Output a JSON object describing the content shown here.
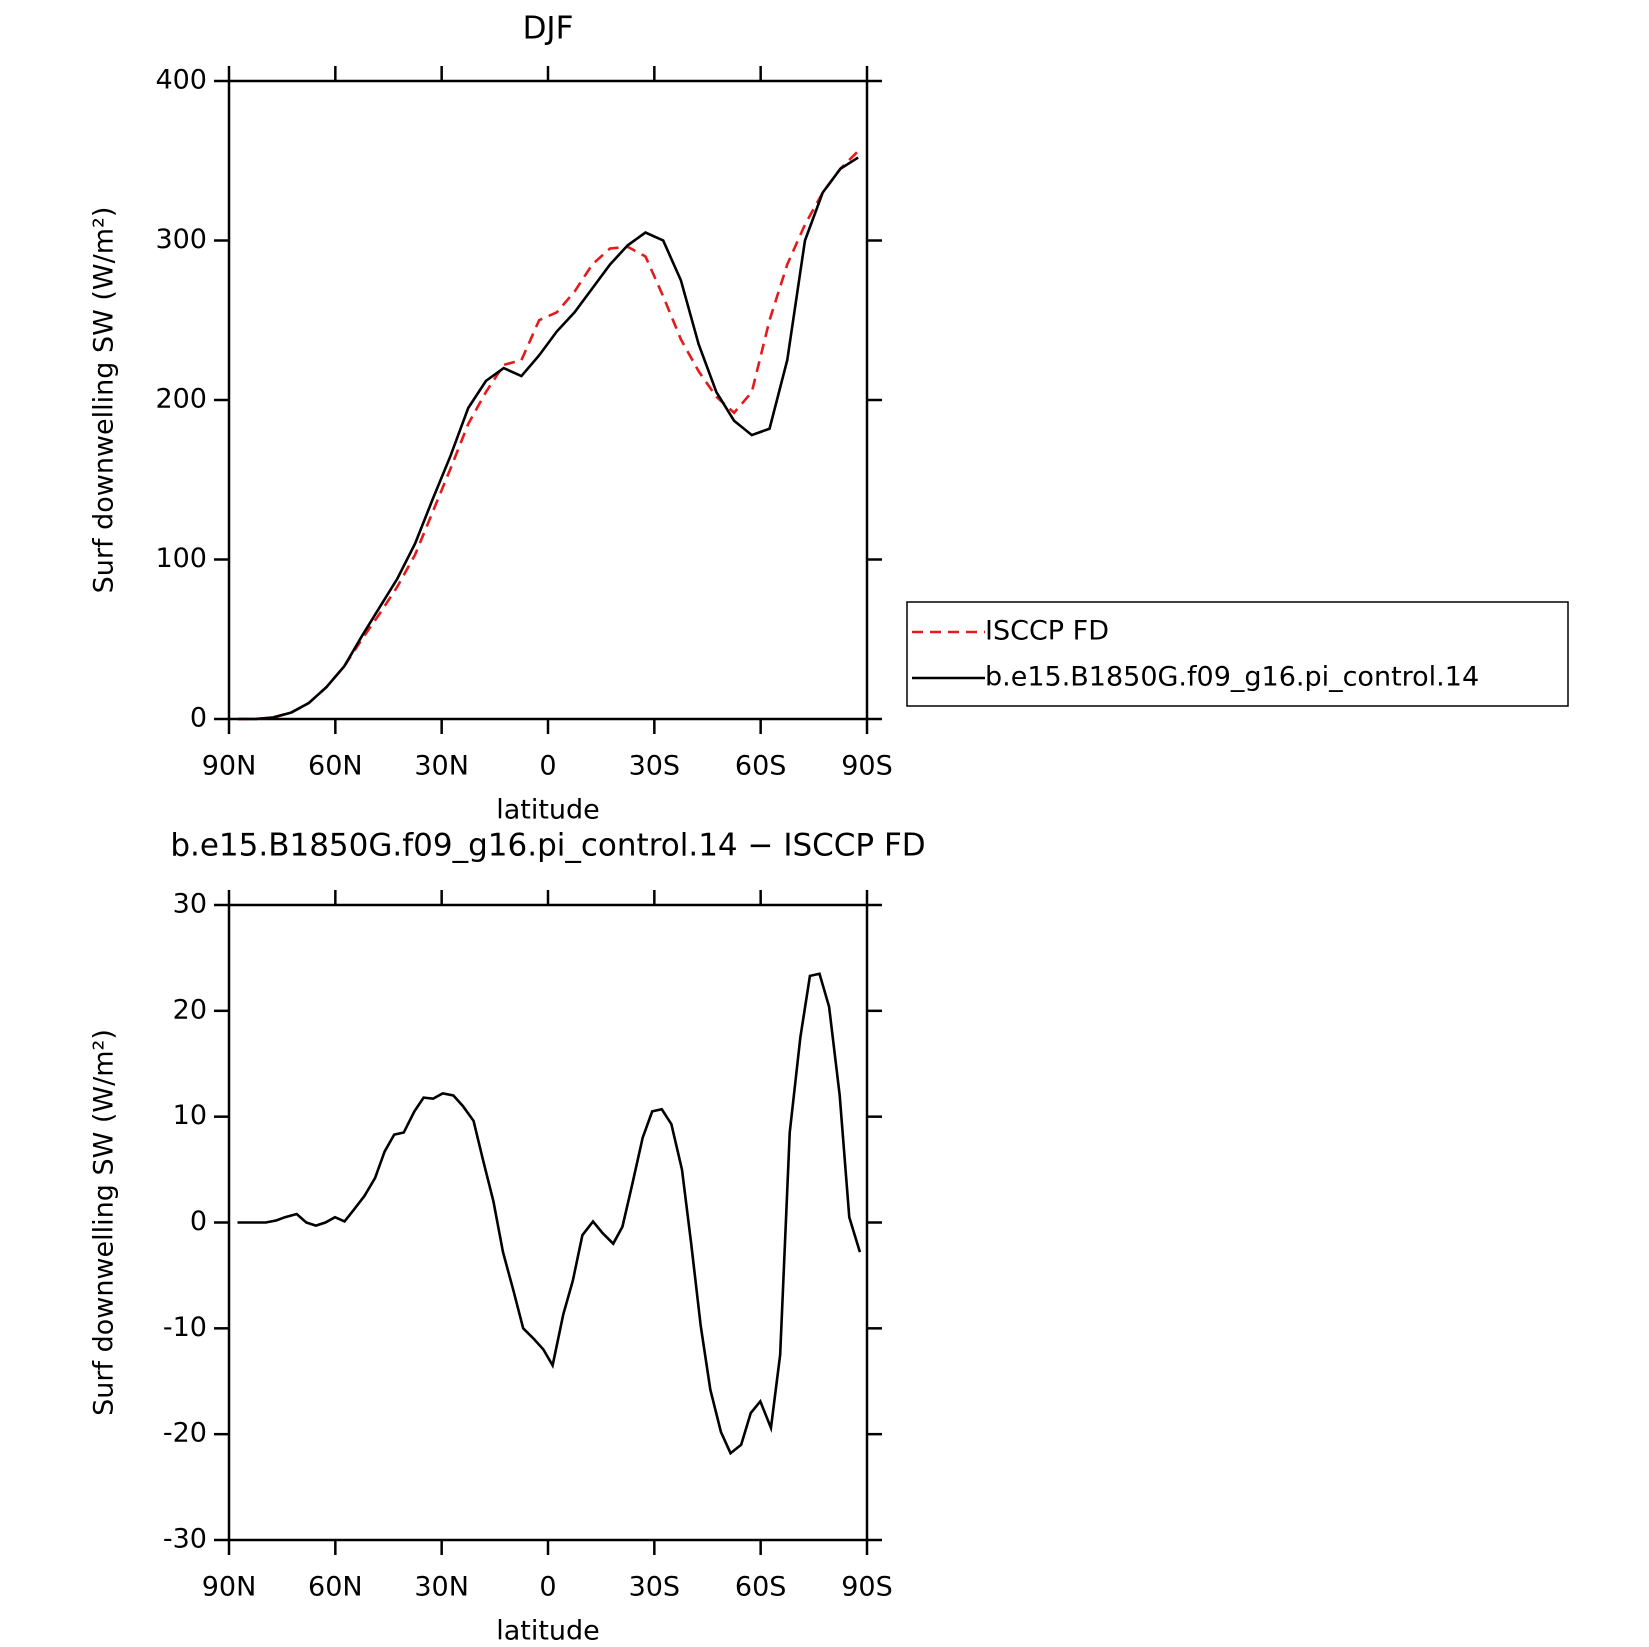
{
  "chart_data": [
    {
      "type": "line",
      "title": "DJF",
      "x_label": "latitude",
      "y_label": "Surf downwelling SW (W/m²)",
      "x": [
        87.5,
        82.5,
        77.5,
        72.5,
        67.5,
        62.5,
        57.5,
        52.5,
        47.5,
        42.5,
        37.5,
        32.5,
        27.5,
        22.5,
        17.5,
        12.5,
        7.5,
        2.5,
        -2.5,
        -7.5,
        -12.5,
        -17.5,
        -22.5,
        -27.5,
        -32.5,
        -37.5,
        -42.5,
        -47.5,
        -52.5,
        -57.5,
        -62.5,
        -67.5,
        -72.5,
        -77.5,
        -82.5,
        -87.5
      ],
      "series": [
        {
          "name": "ISCCP FD",
          "color": "#e41a1c",
          "linestyle": "dashed",
          "values": [
            0,
            0,
            1,
            4,
            10,
            20,
            33,
            50,
            66,
            83,
            103,
            130,
            157,
            185,
            205,
            222,
            225,
            250,
            255,
            268,
            285,
            295,
            296,
            290,
            265,
            238,
            218,
            202,
            192,
            205,
            250,
            285,
            310,
            330,
            345,
            356
          ]
        },
        {
          "name": "b.e15.B1850G.f09_g16.pi_control.14",
          "color": "#000000",
          "linestyle": "solid",
          "values": [
            0,
            0,
            1,
            4,
            10,
            20,
            33,
            52,
            70,
            88,
            110,
            138,
            165,
            195,
            212,
            220,
            215,
            228,
            243,
            255,
            270,
            285,
            297,
            305,
            300,
            275,
            235,
            205,
            187,
            178,
            182,
            225,
            300,
            330,
            345,
            352
          ]
        }
      ],
      "xlim": [
        90,
        -90
      ],
      "xticks": [
        {
          "value": 90,
          "label": "90N"
        },
        {
          "value": 60,
          "label": "60N"
        },
        {
          "value": 30,
          "label": "30N"
        },
        0,
        {
          "value": -30,
          "label": "30S"
        },
        {
          "value": -60,
          "label": "60S"
        },
        {
          "value": -90,
          "label": "90S"
        }
      ],
      "ylim": [
        0,
        400
      ],
      "yticks": [
        0,
        100,
        200,
        300,
        400
      ],
      "legend": "outside-right"
    },
    {
      "type": "line",
      "title": "b.e15.B1850G.f09_g16.pi_control.14 − ISCCP FD",
      "x_label": "latitude",
      "y_label": "Surf downwelling SW (W/m²)",
      "x": [
        87.6,
        79.6,
        76.6,
        74.2,
        70.9,
        68.2,
        65.5,
        62.8,
        60.1,
        57.4,
        54.8,
        51.8,
        48.8,
        46.1,
        43.4,
        40.7,
        37.7,
        35.1,
        32.4,
        29.7,
        26.7,
        24.0,
        21.0,
        18.4,
        15.4,
        12.7,
        9.7,
        7.0,
        4.0,
        1.3,
        -1.3,
        -4.3,
        -7.0,
        -9.7,
        -12.7,
        -15.4,
        -18.4,
        -21.0,
        -23.7,
        -26.7,
        -29.4,
        -32.1,
        -34.8,
        -37.8,
        -40.4,
        -43.1,
        -45.8,
        -48.8,
        -51.5,
        -54.5,
        -57.2,
        -59.9,
        -62.9,
        -65.5,
        -68.2,
        -71.2,
        -73.9,
        -76.6,
        -79.3,
        -82.3,
        -85.0,
        -88.0
      ],
      "series": [
        {
          "name": "b.e15.B1850G.f09_g16.pi_control.14 − ISCCP FD",
          "color": "#000000",
          "linestyle": "solid",
          "values": [
            0,
            0,
            0.2,
            0.5,
            0.8,
            0,
            -0.3,
            0,
            0.5,
            0.1,
            1.2,
            2.5,
            4.2,
            6.7,
            8.3,
            8.5,
            10.5,
            11.8,
            11.7,
            12.2,
            12,
            11,
            9.6,
            6,
            2,
            -2.8,
            -6.5,
            -10,
            -11,
            -12,
            -13.5,
            -8.7,
            -5.5,
            -1.2,
            0.1,
            -1,
            -2,
            -0.4,
            3.5,
            8,
            10.5,
            10.7,
            9.3,
            5,
            -2,
            -9.8,
            -15.8,
            -19.8,
            -21.8,
            -21,
            -18,
            -16.9,
            -19.4,
            -12.5,
            8.5,
            17.5,
            23.3,
            23.5,
            20.4,
            12,
            0.5,
            -2.8
          ]
        }
      ],
      "xlim": [
        90,
        -90
      ],
      "xticks": [
        {
          "value": 90,
          "label": "90N"
        },
        {
          "value": 60,
          "label": "60N"
        },
        {
          "value": 30,
          "label": "30N"
        },
        0,
        {
          "value": -30,
          "label": "30S"
        },
        {
          "value": -60,
          "label": "60S"
        },
        {
          "value": -90,
          "label": "90S"
        }
      ],
      "ylim": [
        -30,
        30
      ],
      "yticks": [
        -30,
        -20,
        -10,
        0,
        10,
        20,
        30
      ],
      "legend": "none"
    }
  ]
}
